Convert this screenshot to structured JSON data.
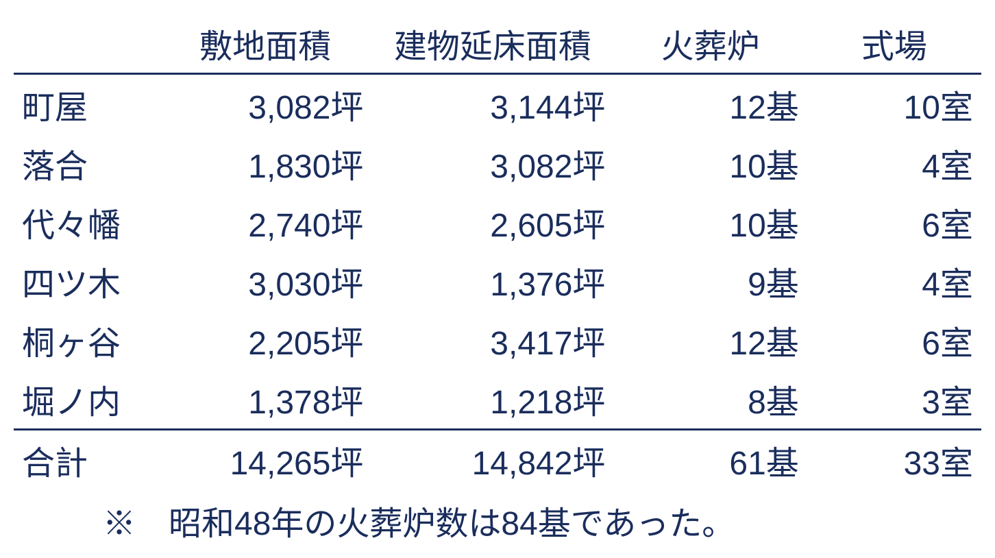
{
  "table": {
    "headers": {
      "name": "",
      "site_area": "敷地面積",
      "floor_area": "建物延床面積",
      "furnaces": "火葬炉",
      "halls": "式場"
    },
    "units": {
      "site_area": "坪",
      "floor_area": "坪",
      "furnaces": "基",
      "halls": "室"
    },
    "rows": [
      {
        "name": "町屋",
        "site_area": "3,082",
        "floor_area": "3,144",
        "furnaces": "12",
        "halls": "10"
      },
      {
        "name": "落合",
        "site_area": "1,830",
        "floor_area": "3,082",
        "furnaces": "10",
        "halls": "4"
      },
      {
        "name": "代々幡",
        "site_area": "2,740",
        "floor_area": "2,605",
        "furnaces": "10",
        "halls": "6"
      },
      {
        "name": "四ツ木",
        "site_area": "3,030",
        "floor_area": "1,376",
        "furnaces": "9",
        "halls": "4"
      },
      {
        "name": "桐ヶ谷",
        "site_area": "2,205",
        "floor_area": "3,417",
        "furnaces": "12",
        "halls": "6"
      },
      {
        "name": "堀ノ内",
        "site_area": "1,378",
        "floor_area": "1,218",
        "furnaces": "8",
        "halls": "3"
      }
    ],
    "total": {
      "name": "合計",
      "site_area": "14,265",
      "floor_area": "14,842",
      "furnaces": "61",
      "halls": "33"
    },
    "footnote": "※　昭和48年の火葬炉数は84基であった。"
  },
  "styling": {
    "text_color": "#1a2d5c",
    "background_color": "#ffffff",
    "border_color": "#1a2d5c",
    "font_size": 48,
    "border_width": 3
  }
}
